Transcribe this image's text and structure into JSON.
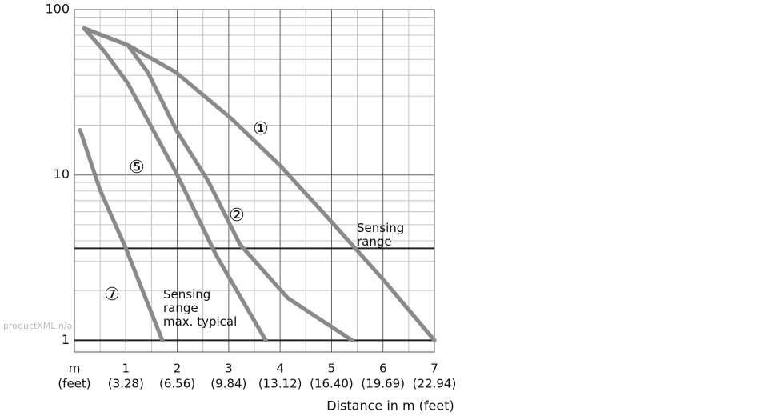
{
  "watermark": "productXML n/a",
  "chart_data": {
    "type": "line",
    "x_label": "Distance in m (feet)",
    "x_unit_label": "m",
    "x_unit_secondary_label": "(feet)",
    "xlim": [
      0,
      7
    ],
    "xticks": [
      1,
      2,
      3,
      4,
      5,
      6,
      7
    ],
    "xtick_secondary_labels": [
      "(3.28)",
      "(6.56)",
      "(9.84)",
      "(13.12)",
      "(16.40)",
      "(19.69)",
      "(22.94)"
    ],
    "xminor": [
      0.5,
      1.5,
      2.5,
      3.5,
      4.5,
      5.5,
      6.5
    ],
    "ylim": [
      0.85,
      100
    ],
    "yscale": "log",
    "yticks": [
      1,
      10,
      100
    ],
    "yminor": [
      2,
      3,
      4,
      5,
      6,
      7,
      8,
      9,
      20,
      30,
      40,
      50,
      60,
      70,
      80,
      90
    ],
    "grid": true,
    "reference_lines": [
      1,
      3.6
    ],
    "annotations": [
      "Sensing range",
      "Sensing range max. typical"
    ],
    "series": [
      {
        "name": "①",
        "color": "#8a8a8a",
        "x": [
          0.19,
          1.04,
          1.98,
          3.06,
          4.0,
          4.93,
          6.02,
          7.0
        ],
        "values": [
          77,
          61,
          41.6,
          21.8,
          11.4,
          5.5,
          2.3,
          1
        ]
      },
      {
        "name": "②",
        "color": "#8a8a8a",
        "x": [
          0.19,
          1.04,
          1.43,
          1.98,
          2.6,
          3.22,
          4.15,
          5.4
        ],
        "values": [
          77,
          61,
          41.6,
          18.7,
          9.2,
          3.8,
          1.8,
          1
        ]
      },
      {
        "name": "⑤",
        "color": "#8a8a8a",
        "x": [
          0.19,
          0.58,
          1.04,
          1.98,
          2.75,
          3.72
        ],
        "values": [
          77,
          56,
          35.8,
          10.3,
          3.3,
          1
        ]
      },
      {
        "name": "⑦",
        "color": "#8a8a8a",
        "x": [
          0.11,
          0.5,
          1.0,
          1.71
        ],
        "values": [
          18.7,
          8.1,
          3.6,
          1
        ]
      }
    ]
  }
}
